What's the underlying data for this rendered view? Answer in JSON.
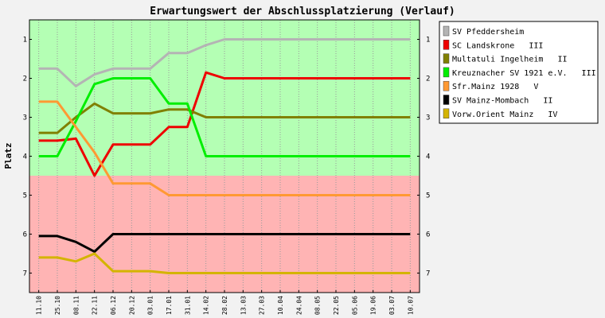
{
  "chart_data": {
    "type": "line",
    "title": "Erwartungswert der Abschlussplatzierung (Verlauf)",
    "ylabel": "Platz",
    "xlabel": "",
    "ylim": [
      0.5,
      7.5
    ],
    "y_inverted": true,
    "y_ticks": [
      "1",
      "2",
      "3",
      "4",
      "5",
      "6",
      "7"
    ],
    "legend_position": "right",
    "grid": "vertical dotted",
    "zones": [
      {
        "from": 0.5,
        "to": 4.5,
        "color": "#b4ffb4"
      },
      {
        "from": 4.5,
        "to": 7.5,
        "color": "#ffb4b4"
      }
    ],
    "x": [
      "11.10",
      "25.10",
      "08.11",
      "22.11",
      "06.12",
      "20.12",
      "03.01",
      "17.01",
      "31.01",
      "14.02",
      "28.02",
      "13.03",
      "27.03",
      "10.04",
      "24.04",
      "08.05",
      "22.05",
      "05.06",
      "19.06",
      "03.07",
      "10.07"
    ],
    "series": [
      {
        "name": "SV Pfeddersheim",
        "color": "#b4b4b4",
        "values": [
          1.75,
          1.75,
          2.2,
          1.9,
          1.75,
          1.75,
          1.75,
          1.35,
          1.35,
          1.15,
          1.0,
          1.0,
          1.0,
          1.0,
          1.0,
          1.0,
          1.0,
          1.0,
          1.0,
          1.0,
          1.0
        ]
      },
      {
        "name": "SC Landskrone   III",
        "color": "#ee0000",
        "values": [
          3.6,
          3.6,
          3.55,
          4.5,
          3.7,
          3.7,
          3.7,
          3.25,
          3.25,
          1.85,
          2.0,
          2.0,
          2.0,
          2.0,
          2.0,
          2.0,
          2.0,
          2.0,
          2.0,
          2.0,
          2.0
        ]
      },
      {
        "name": "Multatuli Ingelheim   II",
        "color": "#808000",
        "values": [
          3.4,
          3.4,
          3.0,
          2.65,
          2.9,
          2.9,
          2.9,
          2.8,
          2.8,
          3.0,
          3.0,
          3.0,
          3.0,
          3.0,
          3.0,
          3.0,
          3.0,
          3.0,
          3.0,
          3.0,
          3.0
        ]
      },
      {
        "name": "Kreuznacher SV 1921 e.V.   III",
        "color": "#00ee00",
        "values": [
          4.0,
          4.0,
          3.1,
          2.15,
          2.0,
          2.0,
          2.0,
          2.65,
          2.65,
          4.0,
          4.0,
          4.0,
          4.0,
          4.0,
          4.0,
          4.0,
          4.0,
          4.0,
          4.0,
          4.0,
          4.0
        ]
      },
      {
        "name": "Sfr.Mainz 1928   V",
        "color": "#ff9933",
        "values": [
          2.6,
          2.6,
          3.25,
          3.9,
          4.7,
          4.7,
          4.7,
          5.0,
          5.0,
          5.0,
          5.0,
          5.0,
          5.0,
          5.0,
          5.0,
          5.0,
          5.0,
          5.0,
          5.0,
          5.0,
          5.0
        ]
      },
      {
        "name": "SV Mainz-Mombach   II",
        "color": "#000000",
        "values": [
          6.05,
          6.05,
          6.2,
          6.45,
          6.0,
          6.0,
          6.0,
          6.0,
          6.0,
          6.0,
          6.0,
          6.0,
          6.0,
          6.0,
          6.0,
          6.0,
          6.0,
          6.0,
          6.0,
          6.0,
          6.0
        ]
      },
      {
        "name": "Vorw.Orient Mainz   IV",
        "color": "#d4b400",
        "values": [
          6.6,
          6.6,
          6.7,
          6.5,
          6.95,
          6.95,
          6.95,
          7.0,
          7.0,
          7.0,
          7.0,
          7.0,
          7.0,
          7.0,
          7.0,
          7.0,
          7.0,
          7.0,
          7.0,
          7.0,
          7.0
        ]
      }
    ]
  }
}
